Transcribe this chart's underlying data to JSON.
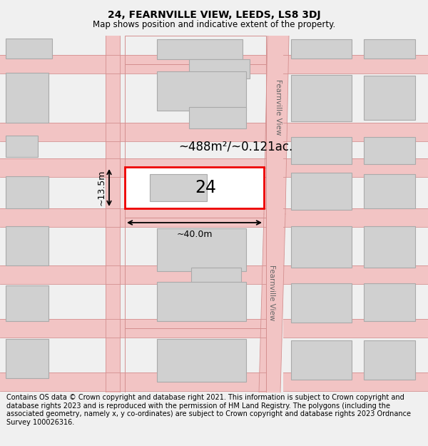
{
  "title": "24, FEARNVILLE VIEW, LEEDS, LS8 3DJ",
  "subtitle": "Map shows position and indicative extent of the property.",
  "footer": "Contains OS data © Crown copyright and database right 2021. This information is subject to Crown copyright and database rights 2023 and is reproduced with the permission of HM Land Registry. The polygons (including the associated geometry, namely x, y co-ordinates) are subject to Crown copyright and database rights 2023 Ordnance Survey 100026316.",
  "map_bg": "#ffffff",
  "page_bg": "#f0f0f0",
  "road_fill": "#f2c4c4",
  "road_edge": "#d49090",
  "bld_fill": "#d0d0d0",
  "bld_edge": "#aaaaaa",
  "plot_fill": "#ffffff",
  "plot_edge": "#ee0000",
  "plot_number": "24",
  "area_label": "~488m²/~0.121ac.",
  "width_label": "~40.0m",
  "height_label": "~13.5m",
  "road_name": "Fearnville View",
  "title_fontsize": 10,
  "subtitle_fontsize": 8.5,
  "footer_fontsize": 7
}
